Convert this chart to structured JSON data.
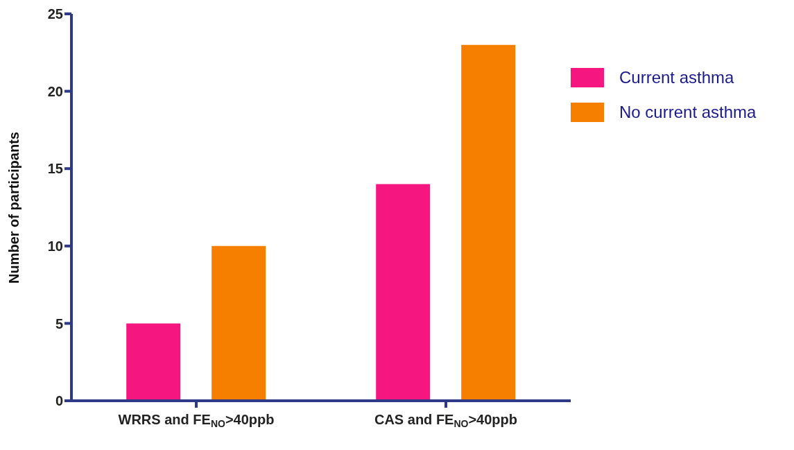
{
  "chart_data": {
    "type": "bar",
    "ylabel": "Number of participants",
    "categories": [
      "WRRS and FE$_{NO}$>40ppb",
      "CAS and FE$_{NO}$>40ppb"
    ],
    "series": [
      {
        "name": "Current asthma",
        "color": "#f5177f",
        "values": [
          5,
          14
        ]
      },
      {
        "name": "No current asthma",
        "color": "#f77f00",
        "values": [
          10,
          23
        ]
      }
    ],
    "ylim": [
      0,
      25
    ],
    "yticks": [
      0,
      5,
      10,
      15,
      20,
      25
    ],
    "grid": false,
    "legend": "top right"
  }
}
